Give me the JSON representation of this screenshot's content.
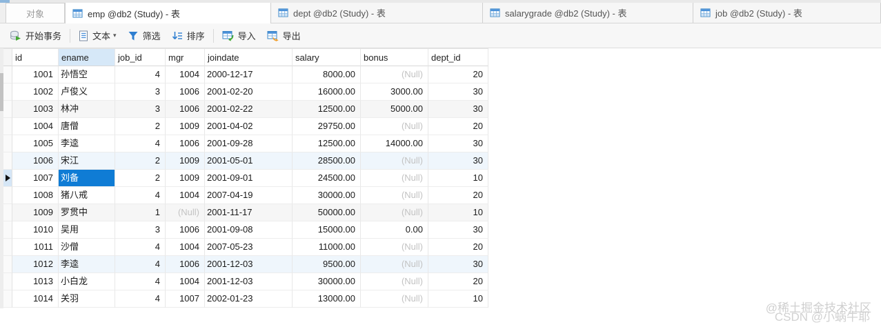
{
  "tabs": [
    {
      "label": "对象"
    },
    {
      "label": "emp @db2 (Study) - 表"
    },
    {
      "label": "dept @db2 (Study) - 表"
    },
    {
      "label": "salarygrade @db2 (Study) - 表"
    },
    {
      "label": "job @db2 (Study) - 表"
    }
  ],
  "toolbar": {
    "begin_transaction": "开始事务",
    "text": "文本",
    "filter": "筛选",
    "sort": "排序",
    "import": "导入",
    "export": "导出"
  },
  "table": {
    "columns": [
      "id",
      "ename",
      "job_id",
      "mgr",
      "joindate",
      "salary",
      "bonus",
      "dept_id"
    ],
    "null_text": "(Null)",
    "selected_cell": {
      "row_index": 6,
      "column": "ename",
      "value": "刘备"
    },
    "rows": [
      [
        "1001",
        "孙悟空",
        "4",
        "1004",
        "2000-12-17",
        "8000.00",
        "(Null)",
        "20"
      ],
      [
        "1002",
        "卢俊义",
        "3",
        "1006",
        "2001-02-20",
        "16000.00",
        "3000.00",
        "30"
      ],
      [
        "1003",
        "林冲",
        "3",
        "1006",
        "2001-02-22",
        "12500.00",
        "5000.00",
        "30"
      ],
      [
        "1004",
        "唐僧",
        "2",
        "1009",
        "2001-04-02",
        "29750.00",
        "(Null)",
        "20"
      ],
      [
        "1005",
        "李逵",
        "4",
        "1006",
        "2001-09-28",
        "12500.00",
        "14000.00",
        "30"
      ],
      [
        "1006",
        "宋江",
        "2",
        "1009",
        "2001-05-01",
        "28500.00",
        "(Null)",
        "30"
      ],
      [
        "1007",
        "刘备",
        "2",
        "1009",
        "2001-09-01",
        "24500.00",
        "(Null)",
        "10"
      ],
      [
        "1008",
        "猪八戒",
        "4",
        "1004",
        "2007-04-19",
        "30000.00",
        "(Null)",
        "20"
      ],
      [
        "1009",
        "罗贯中",
        "1",
        "(Null)",
        "2001-11-17",
        "50000.00",
        "(Null)",
        "10"
      ],
      [
        "1010",
        "吴用",
        "3",
        "1006",
        "2001-09-08",
        "15000.00",
        "0.00",
        "30"
      ],
      [
        "1011",
        "沙僧",
        "4",
        "1004",
        "2007-05-23",
        "11000.00",
        "(Null)",
        "20"
      ],
      [
        "1012",
        "李逵",
        "4",
        "1006",
        "2001-12-03",
        "9500.00",
        "(Null)",
        "30"
      ],
      [
        "1013",
        "小白龙",
        "4",
        "1004",
        "2001-12-03",
        "30000.00",
        "(Null)",
        "20"
      ],
      [
        "1014",
        "关羽",
        "4",
        "1007",
        "2002-01-23",
        "13000.00",
        "(Null)",
        "10"
      ]
    ]
  },
  "watermark": {
    "line1": "@稀土掘金技术社区",
    "line2": "CSDN @小蜗牛耶"
  },
  "colors": {
    "selection_blue": "#0f7cd5",
    "selected_column_header": "#d6e8f8",
    "null_text_gray": "#c3c3c3",
    "table_icon_blue": "#4a90d9"
  }
}
